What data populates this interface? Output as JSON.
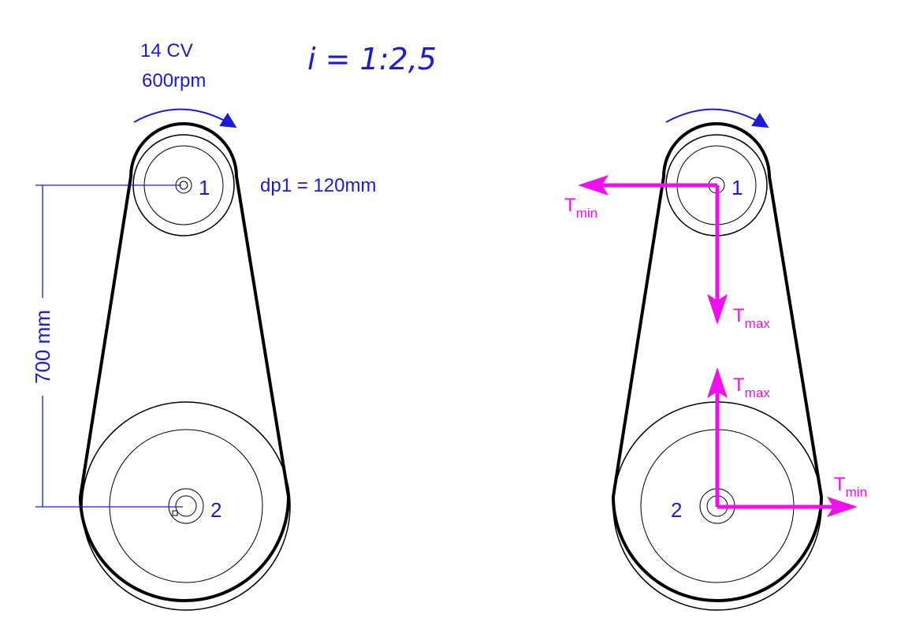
{
  "left_diagram": {
    "power": "14 CV",
    "speed": "600rpm",
    "ratio": "i = 1:2,5",
    "pulley1_label": "1",
    "pulley2_label": "2",
    "pitch_diameter": "dp1 = 120mm",
    "center_distance": "700 mm"
  },
  "right_diagram": {
    "pulley1_label": "1",
    "pulley2_label": "2",
    "tension_min": "T",
    "tension_min_sub": "min",
    "tension_max": "T",
    "tension_max_sub": "max"
  },
  "colors": {
    "annotation": "#1a1adb",
    "force": "#ee11ee",
    "outline": "#000000"
  }
}
